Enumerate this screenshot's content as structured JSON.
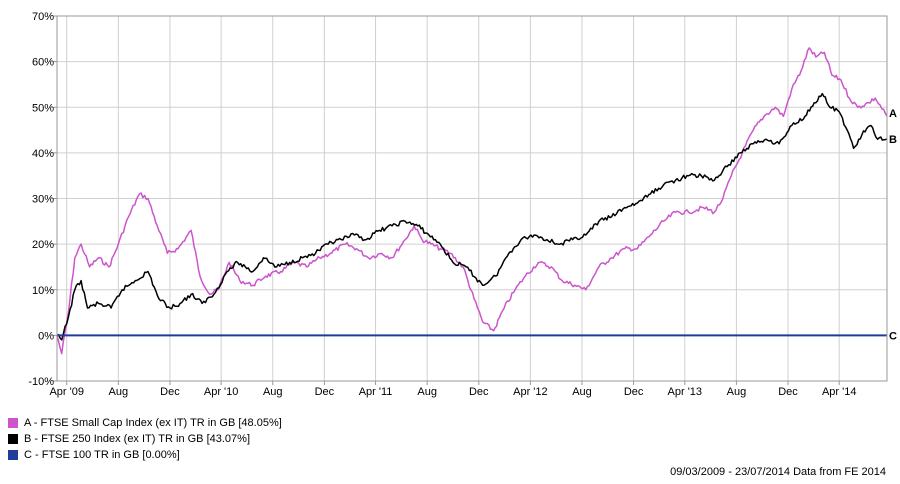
{
  "chart_data": {
    "type": "line",
    "y_ticks": [
      "70%",
      "60%",
      "50%",
      "40%",
      "30%",
      "20%",
      "10%",
      "0%",
      "-10%"
    ],
    "y_range": [
      -10,
      70
    ],
    "x_ticks": [
      "Apr '09",
      "Aug",
      "Dec",
      "Apr '10",
      "Aug",
      "Dec",
      "Apr '11",
      "Aug",
      "Dec",
      "Apr '12",
      "Aug",
      "Dec",
      "Apr '13",
      "Aug",
      "Dec",
      "Apr '14"
    ],
    "x_tick_dates": [
      "2009-04",
      "2009-08",
      "2009-12",
      "2010-04",
      "2010-08",
      "2010-12",
      "2011-04",
      "2011-08",
      "2011-12",
      "2012-04",
      "2012-08",
      "2012-12",
      "2013-04",
      "2013-08",
      "2013-12",
      "2014-04"
    ],
    "x_range": [
      "2009-03-09",
      "2014-07-23"
    ],
    "grid": true,
    "series": [
      {
        "id": "A",
        "name": "A - FTSE Small Cap Index (ex IT) TR in GB [48.05%]",
        "color": "#cc55cc",
        "points": [
          [
            "2009-03-09",
            0
          ],
          [
            "2009-03-20",
            -4
          ],
          [
            "2009-04-05",
            5
          ],
          [
            "2009-04-20",
            17
          ],
          [
            "2009-05-05",
            20
          ],
          [
            "2009-05-25",
            15
          ],
          [
            "2009-06-15",
            17
          ],
          [
            "2009-07-10",
            15
          ],
          [
            "2009-08-01",
            20
          ],
          [
            "2009-08-25",
            26
          ],
          [
            "2009-09-20",
            31
          ],
          [
            "2009-10-10",
            30
          ],
          [
            "2009-11-01",
            24
          ],
          [
            "2009-11-25",
            18
          ],
          [
            "2009-12-20",
            19
          ],
          [
            "2010-01-20",
            23
          ],
          [
            "2010-02-10",
            13
          ],
          [
            "2010-03-05",
            9
          ],
          [
            "2010-03-25",
            10
          ],
          [
            "2010-04-20",
            16
          ],
          [
            "2010-05-15",
            12
          ],
          [
            "2010-06-15",
            11
          ],
          [
            "2010-07-15",
            13
          ],
          [
            "2010-08-20",
            14
          ],
          [
            "2010-09-20",
            16
          ],
          [
            "2010-10-20",
            15
          ],
          [
            "2010-11-20",
            17
          ],
          [
            "2010-12-15",
            18
          ],
          [
            "2011-01-20",
            20
          ],
          [
            "2011-02-15",
            19
          ],
          [
            "2011-03-15",
            17
          ],
          [
            "2011-04-15",
            18
          ],
          [
            "2011-05-10",
            17
          ],
          [
            "2011-06-10",
            21
          ],
          [
            "2011-07-01",
            24
          ],
          [
            "2011-07-20",
            21
          ],
          [
            "2011-08-10",
            20
          ],
          [
            "2011-09-01",
            19
          ],
          [
            "2011-09-25",
            18
          ],
          [
            "2011-10-25",
            15
          ],
          [
            "2011-11-20",
            8
          ],
          [
            "2011-12-10",
            3
          ],
          [
            "2012-01-05",
            1
          ],
          [
            "2012-01-30",
            6
          ],
          [
            "2012-02-25",
            10
          ],
          [
            "2012-03-20",
            13
          ],
          [
            "2012-04-20",
            16
          ],
          [
            "2012-05-20",
            15
          ],
          [
            "2012-06-15",
            12
          ],
          [
            "2012-07-15",
            11
          ],
          [
            "2012-08-10",
            10
          ],
          [
            "2012-09-10",
            15
          ],
          [
            "2012-10-10",
            17
          ],
          [
            "2012-11-10",
            19
          ],
          [
            "2012-12-10",
            19
          ],
          [
            "2013-01-10",
            22
          ],
          [
            "2013-02-10",
            25
          ],
          [
            "2013-03-10",
            27
          ],
          [
            "2013-04-10",
            27
          ],
          [
            "2013-05-15",
            28
          ],
          [
            "2013-06-10",
            27
          ],
          [
            "2013-06-30",
            30
          ],
          [
            "2013-07-20",
            35
          ],
          [
            "2013-08-15",
            40
          ],
          [
            "2013-09-10",
            45
          ],
          [
            "2013-10-05",
            48
          ],
          [
            "2013-11-01",
            50
          ],
          [
            "2013-11-20",
            48
          ],
          [
            "2013-12-10",
            54
          ],
          [
            "2014-01-01",
            58
          ],
          [
            "2014-01-20",
            63
          ],
          [
            "2014-02-05",
            61
          ],
          [
            "2014-02-25",
            62
          ],
          [
            "2014-03-15",
            57
          ],
          [
            "2014-04-05",
            56
          ],
          [
            "2014-04-25",
            52
          ],
          [
            "2014-05-15",
            50
          ],
          [
            "2014-06-10",
            51
          ],
          [
            "2014-06-25",
            52
          ],
          [
            "2014-07-23",
            48.05
          ]
        ]
      },
      {
        "id": "B",
        "name": "B - FTSE 250 Index (ex IT) TR in GB [43.07%]",
        "color": "#000000",
        "points": [
          [
            "2009-03-09",
            0
          ],
          [
            "2009-03-20",
            -1
          ],
          [
            "2009-04-05",
            4
          ],
          [
            "2009-04-20",
            10
          ],
          [
            "2009-05-05",
            12
          ],
          [
            "2009-05-20",
            6
          ],
          [
            "2009-06-15",
            7
          ],
          [
            "2009-07-15",
            6
          ],
          [
            "2009-08-10",
            10
          ],
          [
            "2009-09-10",
            12
          ],
          [
            "2009-10-10",
            14
          ],
          [
            "2009-11-05",
            8
          ],
          [
            "2009-12-01",
            6
          ],
          [
            "2009-12-25",
            7
          ],
          [
            "2010-01-20",
            9
          ],
          [
            "2010-02-15",
            7
          ],
          [
            "2010-03-15",
            9
          ],
          [
            "2010-04-15",
            14
          ],
          [
            "2010-05-10",
            16
          ],
          [
            "2010-06-15",
            14
          ],
          [
            "2010-07-10",
            17
          ],
          [
            "2010-08-10",
            15
          ],
          [
            "2010-09-10",
            16
          ],
          [
            "2010-10-10",
            17
          ],
          [
            "2010-11-10",
            18
          ],
          [
            "2010-12-10",
            20
          ],
          [
            "2011-01-10",
            21
          ],
          [
            "2011-02-10",
            22
          ],
          [
            "2011-03-10",
            21
          ],
          [
            "2011-04-10",
            23
          ],
          [
            "2011-05-10",
            24
          ],
          [
            "2011-06-10",
            25
          ],
          [
            "2011-07-10",
            24
          ],
          [
            "2011-08-05",
            22
          ],
          [
            "2011-09-01",
            20
          ],
          [
            "2011-10-01",
            16
          ],
          [
            "2011-11-01",
            15
          ],
          [
            "2011-12-10",
            11
          ],
          [
            "2012-01-10",
            13
          ],
          [
            "2012-02-10",
            18
          ],
          [
            "2012-03-10",
            21
          ],
          [
            "2012-04-10",
            22
          ],
          [
            "2012-05-10",
            21
          ],
          [
            "2012-06-10",
            20
          ],
          [
            "2012-07-10",
            21
          ],
          [
            "2012-08-10",
            22
          ],
          [
            "2012-09-10",
            25
          ],
          [
            "2012-10-10",
            26
          ],
          [
            "2012-11-10",
            28
          ],
          [
            "2012-12-10",
            29
          ],
          [
            "2013-01-10",
            31
          ],
          [
            "2013-02-10",
            33
          ],
          [
            "2013-03-10",
            34
          ],
          [
            "2013-04-10",
            35
          ],
          [
            "2013-05-10",
            35
          ],
          [
            "2013-06-10",
            34
          ],
          [
            "2013-07-10",
            37
          ],
          [
            "2013-08-10",
            40
          ],
          [
            "2013-09-10",
            42
          ],
          [
            "2013-10-10",
            43
          ],
          [
            "2013-11-10",
            42
          ],
          [
            "2013-12-10",
            46
          ],
          [
            "2014-01-10",
            48
          ],
          [
            "2014-02-01",
            51
          ],
          [
            "2014-02-20",
            53
          ],
          [
            "2014-03-10",
            50
          ],
          [
            "2014-04-01",
            49
          ],
          [
            "2014-04-20",
            45
          ],
          [
            "2014-05-05",
            41
          ],
          [
            "2014-05-25",
            44
          ],
          [
            "2014-06-15",
            46
          ],
          [
            "2014-07-01",
            43
          ],
          [
            "2014-07-23",
            43.07
          ]
        ]
      },
      {
        "id": "C",
        "name": "C - FTSE 100 TR in GB [0.00%]",
        "color": "#1f3d99",
        "points": [
          [
            "2009-03-09",
            0
          ],
          [
            "2014-07-23",
            0
          ]
        ]
      }
    ]
  },
  "footer": "09/03/2009 - 23/07/2014 Data from FE 2014"
}
